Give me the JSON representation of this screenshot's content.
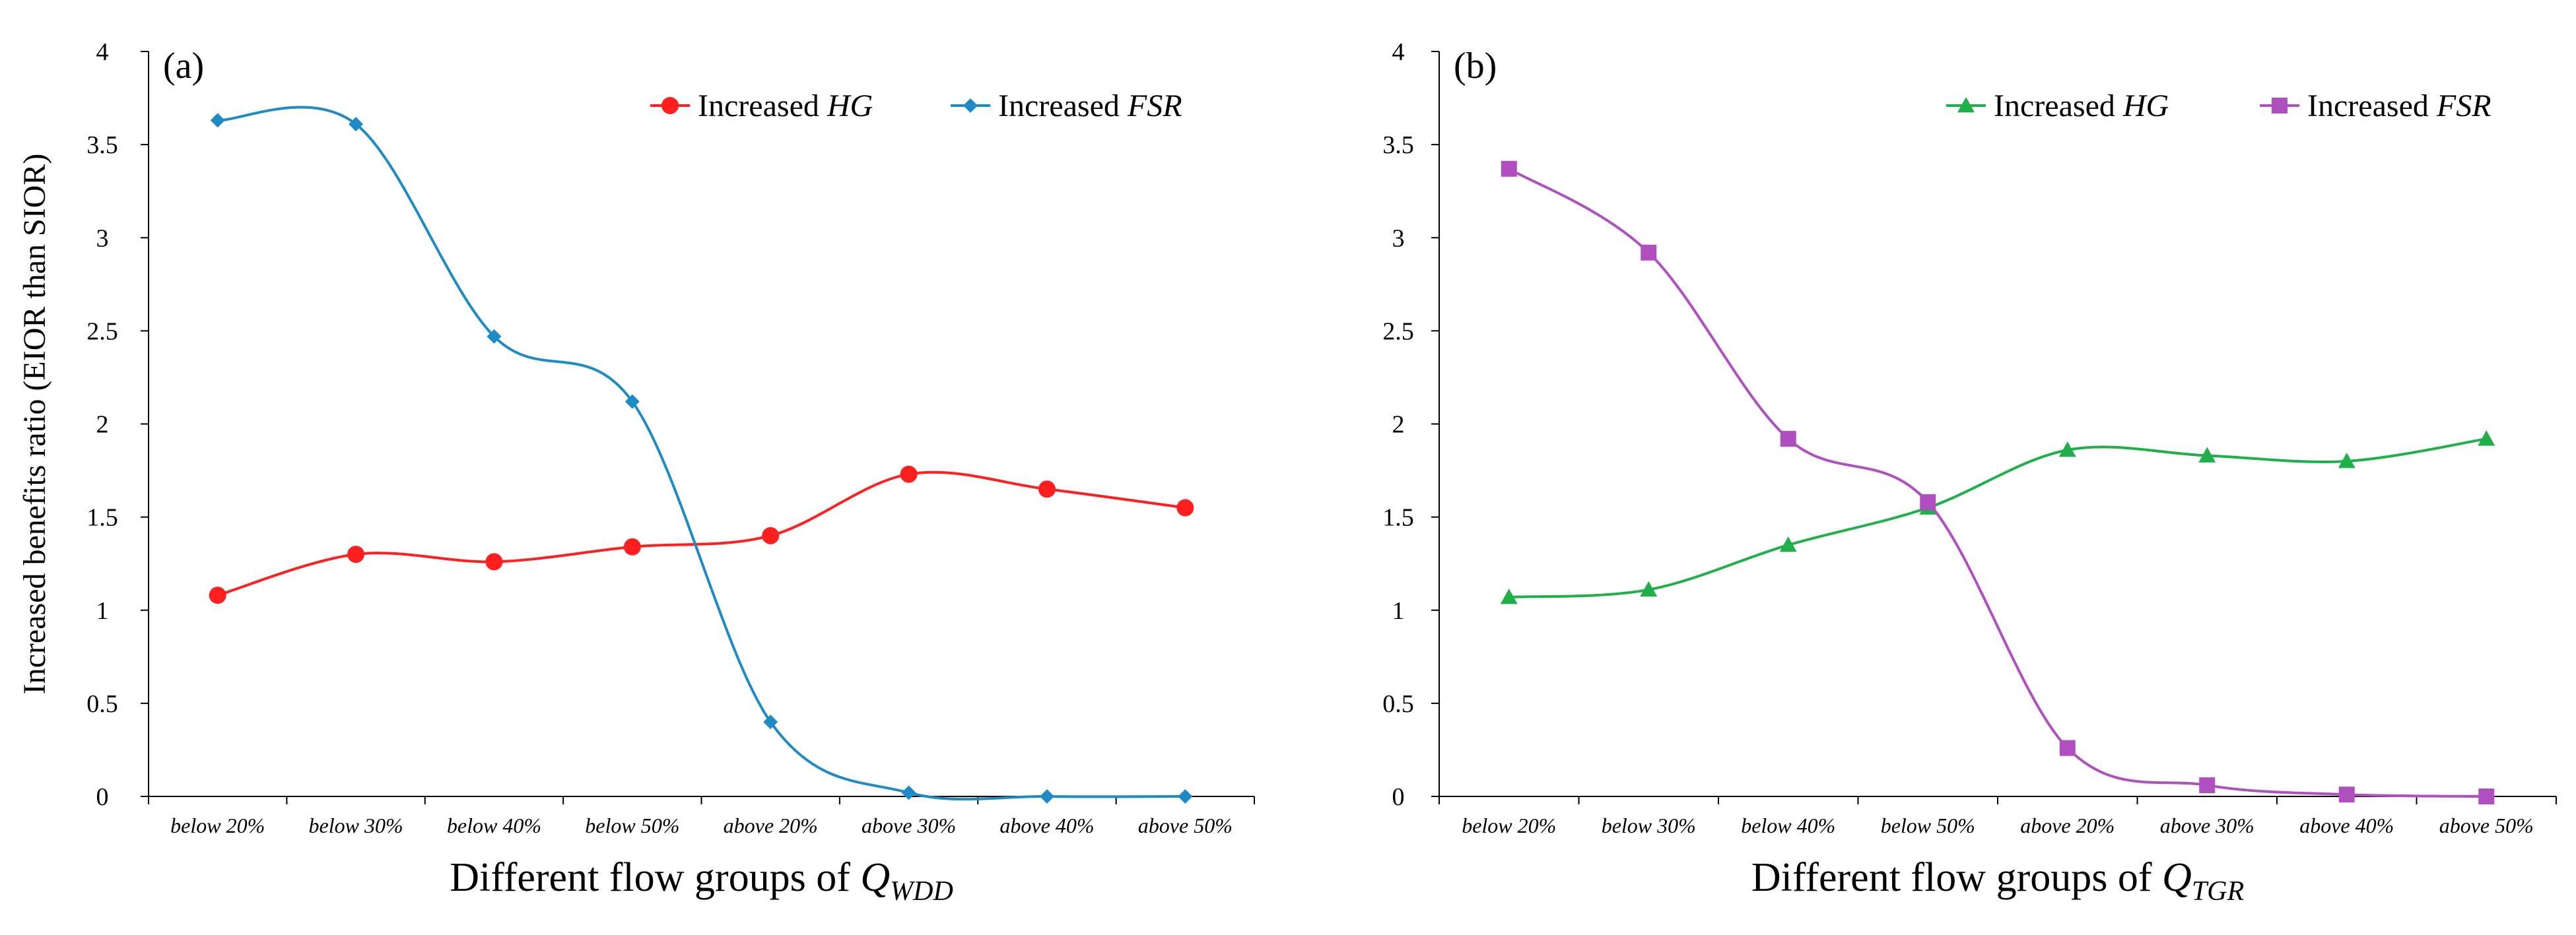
{
  "chart_data": [
    {
      "type": "line",
      "panel_label": "(a)",
      "title": "",
      "categories": [
        "below 20%",
        "below 30%",
        "below 40%",
        "below 50%",
        "above 20%",
        "above 30%",
        "above 40%",
        "above 50%"
      ],
      "xlabel": {
        "prefix": "Different flow groups of ",
        "symbol": "Q",
        "subscript": "WDD"
      },
      "ylabel": "Increased benefits ratio (EIOR than SIOR)",
      "ylim": [
        0,
        4
      ],
      "yticks": [
        0,
        0.5,
        1,
        1.5,
        2,
        2.5,
        3,
        3.5,
        4
      ],
      "ytick_labels": [
        "0",
        "0.5",
        "1",
        "1.5",
        "2",
        "2.5",
        "3",
        "3.5",
        "4"
      ],
      "grid": false,
      "legend_position": "top-right",
      "series": [
        {
          "name": "Increased HG",
          "legend_prefix": "Increased ",
          "legend_var": "HG",
          "color": "#ff1f1f",
          "marker": "circle",
          "values": [
            1.08,
            1.3,
            1.26,
            1.34,
            1.4,
            1.73,
            1.65,
            1.55
          ]
        },
        {
          "name": "Increased FSR",
          "legend_prefix": "Increased ",
          "legend_var": "FSR",
          "color": "#1f8bc6",
          "marker": "diamond",
          "values": [
            3.63,
            3.61,
            2.47,
            2.12,
            0.4,
            0.02,
            0.0,
            0.0
          ]
        }
      ]
    },
    {
      "type": "line",
      "panel_label": "(b)",
      "title": "",
      "categories": [
        "below 20%",
        "below 30%",
        "below 40%",
        "below 50%",
        "above 20%",
        "above 30%",
        "above 40%",
        "above 50%"
      ],
      "xlabel": {
        "prefix": "Different flow groups of ",
        "symbol": "Q",
        "subscript": "TGR"
      },
      "ylabel": "",
      "ylim": [
        0,
        4
      ],
      "yticks": [
        0,
        0.5,
        1,
        1.5,
        2,
        2.5,
        3,
        3.5,
        4
      ],
      "ytick_labels": [
        "0",
        "0.5",
        "1",
        "1.5",
        "2",
        "2.5",
        "3",
        "3.5",
        "4"
      ],
      "grid": false,
      "legend_position": "top-right",
      "series": [
        {
          "name": "Increased HG",
          "legend_prefix": "Increased ",
          "legend_var": "HG",
          "color": "#1fb04a",
          "marker": "triangle",
          "values": [
            1.07,
            1.11,
            1.35,
            1.55,
            1.86,
            1.83,
            1.8,
            1.92
          ]
        },
        {
          "name": "Increased FSR",
          "legend_prefix": "Increased ",
          "legend_var": "FSR",
          "color": "#b04fc0",
          "marker": "square",
          "values": [
            3.37,
            2.92,
            1.92,
            1.58,
            0.26,
            0.06,
            0.01,
            0.0
          ]
        }
      ]
    }
  ]
}
